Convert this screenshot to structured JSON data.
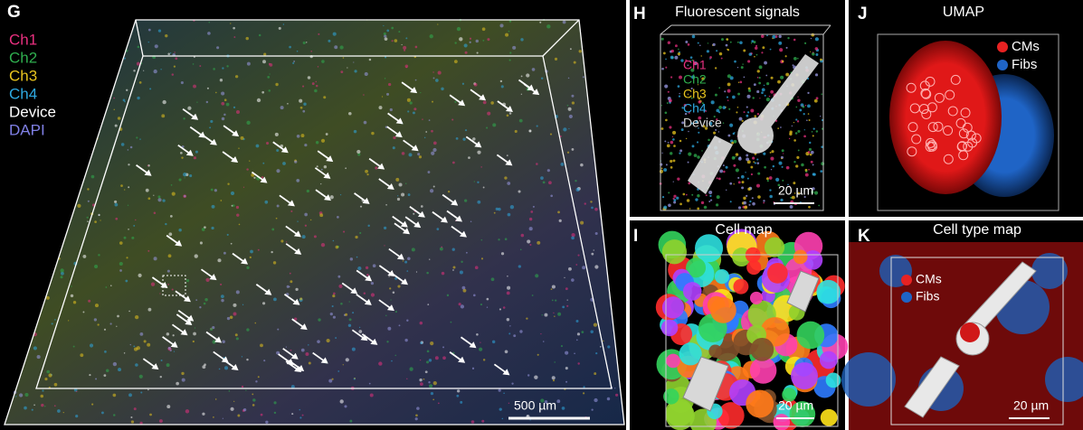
{
  "panel_g": {
    "label": "G",
    "legend": [
      {
        "text": "Ch1",
        "color": "#e8307f"
      },
      {
        "text": "Ch2",
        "color": "#2fae4e"
      },
      {
        "text": "Ch3",
        "color": "#e8c41e"
      },
      {
        "text": "Ch4",
        "color": "#2ea9e2"
      },
      {
        "text": "Device",
        "color": "#ffffff"
      },
      {
        "text": "DAPI",
        "color": "#8080e6"
      }
    ],
    "scale_bar": "500 µm"
  },
  "panel_h": {
    "label": "H",
    "title": "Fluorescent signals",
    "legend": [
      {
        "text": "Ch1",
        "color": "#e8307f"
      },
      {
        "text": "Ch2",
        "color": "#2fae4e"
      },
      {
        "text": "Ch3",
        "color": "#e8c41e"
      },
      {
        "text": "Ch4",
        "color": "#2ea9e2"
      },
      {
        "text": "Device",
        "color": "#d8d8d8"
      }
    ],
    "scale_bar": "20 µm"
  },
  "panel_j": {
    "label": "J",
    "title": "UMAP",
    "legend": [
      {
        "text": "CMs",
        "color": "#e82222"
      },
      {
        "text": "Fibs",
        "color": "#1f64c6"
      }
    ]
  },
  "panel_i": {
    "label": "I",
    "title": "Cell map",
    "scale_bar": "20 µm"
  },
  "panel_k": {
    "label": "K",
    "title": "Cell type map",
    "legend": [
      {
        "text": "CMs",
        "color": "#e82222"
      },
      {
        "text": "Fibs",
        "color": "#1f64c6"
      }
    ],
    "scale_bar": "20 µm"
  }
}
